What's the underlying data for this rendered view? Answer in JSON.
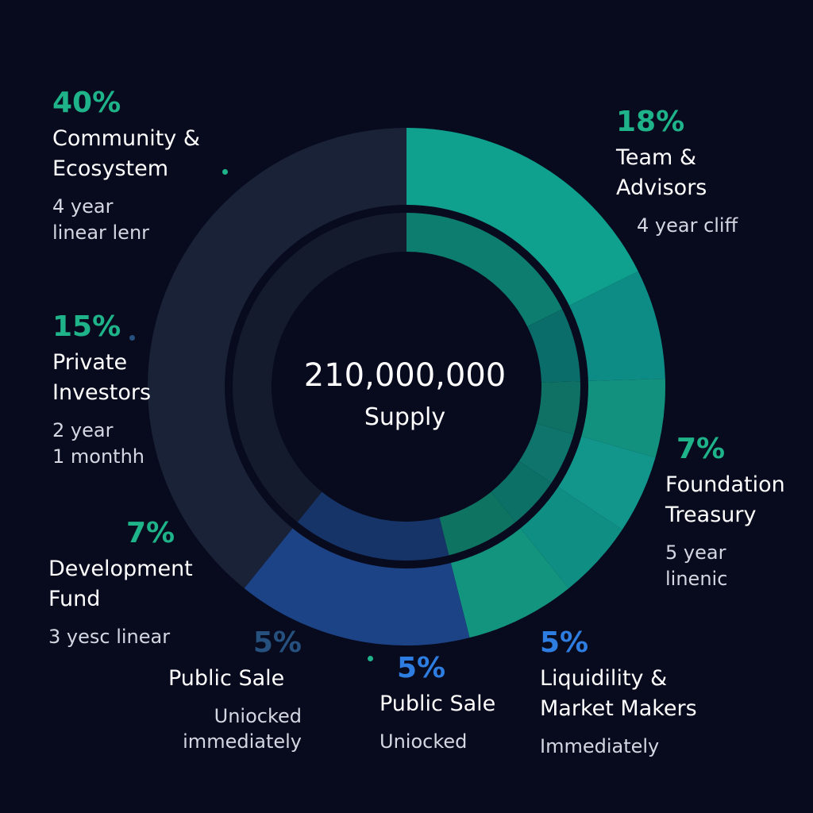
{
  "center": {
    "total": "210,000,000",
    "label": "Supply"
  },
  "colors": {
    "background": "#080a1e",
    "teal": "#10a08e",
    "teal_dark": "#0c8a86",
    "navy": "#1a2238",
    "blue": "#1c4385",
    "green_text": "#1fb38a",
    "blue_text": "#2e7de0",
    "dark_blue_text": "#26507e"
  },
  "chart_data": {
    "type": "pie",
    "title": "",
    "total_supply": "210,000,000",
    "center_label": "Supply",
    "slices": [
      {
        "label": "Community & Ecosystem",
        "percent": 40,
        "percent_label": "40%",
        "note": "4 year linear lenr",
        "color": "#1a2238"
      },
      {
        "label": "Team & Advisors",
        "percent": 18,
        "percent_label": "18%",
        "note": "4 year cliff",
        "color": "#10a08e"
      },
      {
        "label": "Foundation Treasury",
        "percent": 7,
        "percent_label": "7%",
        "note": "5 year linenic",
        "color": "#0d8c86"
      },
      {
        "label": "Liquidility & Market Makers",
        "percent": 5,
        "percent_label": "5%",
        "note": "Immediately",
        "color": "#13917f"
      },
      {
        "label": "Public Sale",
        "percent": 5,
        "percent_label": "5%",
        "note": "Uniocked",
        "color": "#12958a"
      },
      {
        "label": "Public Sale",
        "percent": 5,
        "percent_label": "5%",
        "note": "Uniocked immediately",
        "color": "#0f8f84"
      },
      {
        "label": "Development Fund",
        "percent": 7,
        "percent_label": "7%",
        "note": "3 yesc linear",
        "color": "#13947e"
      },
      {
        "label": "Private Investors",
        "percent": 15,
        "percent_label": "15%",
        "note": "2 year 1 monthh",
        "color": "#1c4385"
      }
    ]
  },
  "labels": {
    "community": {
      "pct": "40%",
      "name_line1": "Community &",
      "name_line2": "Ecosystem",
      "note_line1": "4 year",
      "note_line2": "linear lenr"
    },
    "team": {
      "pct": "18%",
      "name_line1": "Team &",
      "name_line2": "Advisors",
      "note_line1": "4 year cliff"
    },
    "foundation": {
      "pct": "7%",
      "name_line1": "Foundation",
      "name_line2": "Treasury",
      "note_line1": "5 year",
      "note_line2": "linenic"
    },
    "liquidity": {
      "pct": "5%",
      "name_line1": "Liquidility &",
      "name_line2": "Market Makers",
      "note_line1": "Immediately"
    },
    "public_sale_1": {
      "pct": "5%",
      "name_line1": "Public Sale",
      "note_line1": "Uniocked"
    },
    "public_sale_2": {
      "pct": "5%",
      "name_line1": "Public Sale",
      "note_line1": "Uniocked",
      "note_line2": "immediately"
    },
    "development": {
      "pct": "7%",
      "name_line1": "Development",
      "name_line2": "Fund",
      "note_line1": "3 yesc linear"
    },
    "private": {
      "pct": "15%",
      "name_line1": "Private",
      "name_line2": "Investors",
      "note_line1": "2 year",
      "note_line2": "1 monthh"
    }
  }
}
